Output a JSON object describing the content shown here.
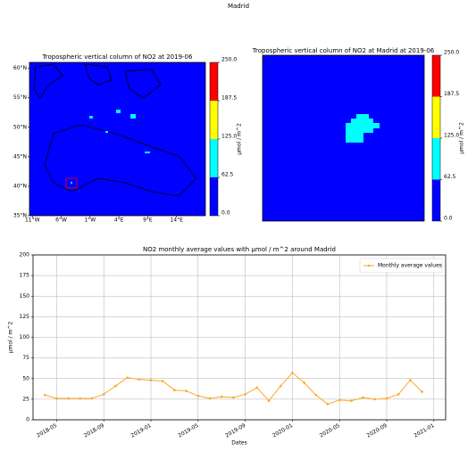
{
  "title": "Madrid",
  "chart_data": [
    {
      "type": "map",
      "title": "Tropospheric vertical column of NO2 at 2019-06",
      "xlim": [
        -11.5,
        19
      ],
      "ylim": [
        35,
        61
      ],
      "xticks": [
        {
          "value": -11,
          "label": "11°W"
        },
        {
          "value": -6,
          "label": "6°W"
        },
        {
          "value": -1,
          "label": "1°W"
        },
        {
          "value": 4,
          "label": "4°E"
        },
        {
          "value": 9,
          "label": "9°E"
        },
        {
          "value": 14,
          "label": "14°E"
        }
      ],
      "yticks": [
        {
          "value": 35,
          "label": "35°N"
        },
        {
          "value": 40,
          "label": "40°N"
        },
        {
          "value": 45,
          "label": "45°N"
        },
        {
          "value": 50,
          "label": "50°N"
        },
        {
          "value": 55,
          "label": "55°N"
        },
        {
          "value": 60,
          "label": "60°N"
        }
      ],
      "colorbar": {
        "label": "µmol / m^2",
        "lim": [
          0,
          250
        ],
        "ticks": [
          {
            "value": 0,
            "label": "0.0"
          },
          62.5,
          {
            "value": 125,
            "label": "125.0"
          },
          187.5,
          {
            "value": 250,
            "label": "250.0"
          }
        ],
        "colors": [
          "#0000ff",
          "#00ffff",
          "#ffff00",
          "#ff0000"
        ]
      }
    },
    {
      "type": "map",
      "title": "Tropospheric vertical column of NO2 at Madrid at 2019-06",
      "colorbar": {
        "label": "µmol / m^2",
        "lim": [
          0,
          250
        ],
        "ticks": [
          {
            "value": 0,
            "label": "0.0"
          },
          62.5,
          {
            "value": 125,
            "label": "125.0"
          },
          187.5,
          {
            "value": 250,
            "label": "250.0"
          }
        ],
        "colors": [
          "#0000ff",
          "#00ffff",
          "#ffff00",
          "#ff0000"
        ]
      }
    },
    {
      "type": "line",
      "title": "NO2 monthly average values with µmol / m^2 around Madrid",
      "x_label": "Dates",
      "y_label": "µmol / m^2",
      "x": [
        "2018-04",
        "2018-05",
        "2018-06",
        "2018-07",
        "2018-08",
        "2018-09",
        "2018-10",
        "2018-11",
        "2018-12",
        "2019-01",
        "2019-02",
        "2019-03",
        "2019-04",
        "2019-05",
        "2019-06",
        "2019-07",
        "2019-08",
        "2019-09",
        "2019-10",
        "2019-11",
        "2019-12",
        "2020-01",
        "2020-02",
        "2020-03",
        "2020-04",
        "2020-05",
        "2020-06",
        "2020-07",
        "2020-08",
        "2020-09",
        "2020-10",
        "2020-11",
        "2020-12"
      ],
      "series": [
        {
          "name": "Monthly average values",
          "color": "#ffa726",
          "values": [
            30,
            26,
            26,
            26,
            26,
            31,
            41,
            51,
            49,
            48,
            47,
            36,
            35,
            29,
            26,
            28,
            27,
            31,
            39,
            23,
            41,
            57,
            45,
            30,
            19,
            24,
            23,
            27,
            25,
            26,
            31,
            48,
            34
          ]
        }
      ],
      "xlim": [
        "2018-03",
        "2021-02"
      ],
      "xticks": [
        "2018-05",
        "2018-09",
        "2019-01",
        "2019-05",
        "2019-09",
        "2020-01",
        "2020-05",
        "2020-09",
        "2021-01"
      ],
      "ylim": [
        0,
        200
      ],
      "yticks": [
        0,
        25,
        50,
        75,
        100,
        125,
        150,
        175,
        200
      ],
      "grid": true,
      "legend": "upper right"
    }
  ]
}
